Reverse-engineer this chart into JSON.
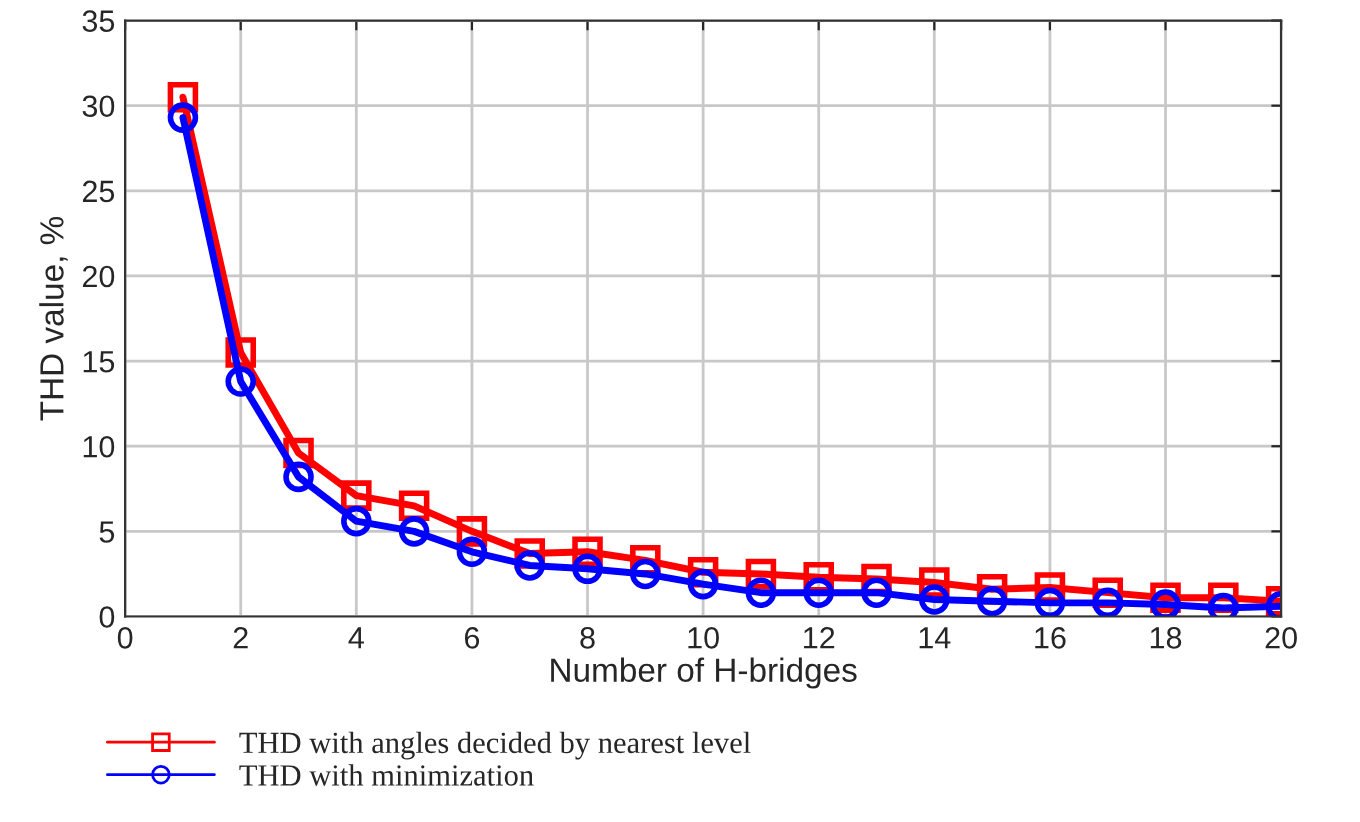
{
  "chart_data": {
    "type": "line",
    "xlabel": "Number of H-bridges",
    "ylabel": "THD value, %",
    "x": [
      1,
      2,
      3,
      4,
      5,
      6,
      7,
      8,
      9,
      10,
      11,
      12,
      13,
      14,
      15,
      16,
      17,
      18,
      19,
      20
    ],
    "series": [
      {
        "name": "THD with angles decided by nearest level",
        "color": "#ff0000",
        "marker": "square",
        "values": [
          30.5,
          15.5,
          9.6,
          7.1,
          6.5,
          5.0,
          3.7,
          3.8,
          3.3,
          2.6,
          2.5,
          2.3,
          2.2,
          2.0,
          1.6,
          1.7,
          1.4,
          1.1,
          1.1,
          0.9
        ]
      },
      {
        "name": "THD with minimization",
        "color": "#0000ff",
        "marker": "circle",
        "values": [
          29.3,
          13.8,
          8.2,
          5.6,
          5.0,
          3.8,
          3.0,
          2.8,
          2.5,
          1.9,
          1.4,
          1.4,
          1.4,
          1.0,
          0.9,
          0.8,
          0.8,
          0.7,
          0.5,
          0.6
        ]
      }
    ],
    "xlim": [
      0,
      20
    ],
    "ylim": [
      0,
      35
    ],
    "xticks": [
      0,
      2,
      4,
      6,
      8,
      10,
      12,
      14,
      16,
      18,
      20
    ],
    "yticks": [
      0,
      5,
      10,
      15,
      20,
      25,
      30,
      35
    ],
    "grid": true,
    "legend": "bottom left",
    "line_style": "solid"
  }
}
